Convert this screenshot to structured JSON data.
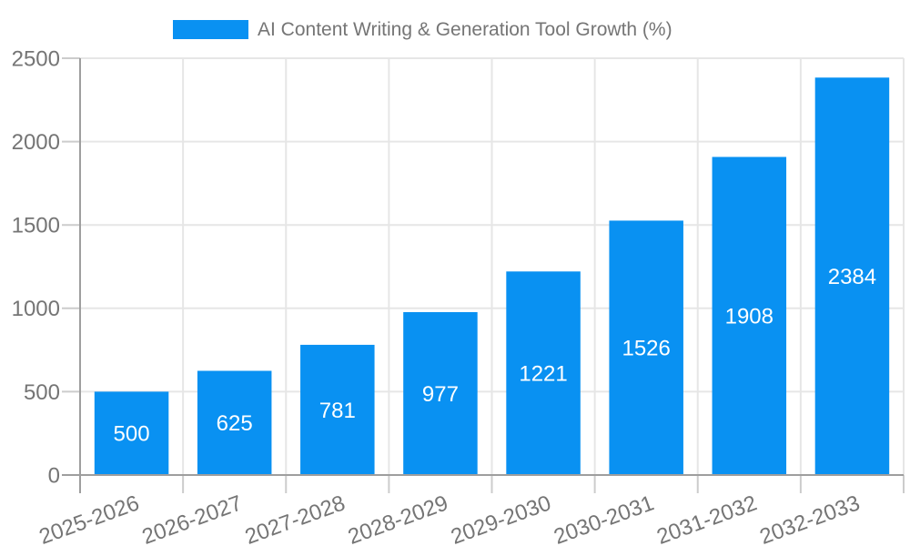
{
  "chart_data": {
    "type": "bar",
    "title": "AI Content Writing & Generation Tool Growth (%)",
    "categories": [
      "2025-2026",
      "2026-2027",
      "2027-2028",
      "2028-2029",
      "2029-2030",
      "2030-2031",
      "2031-2032",
      "2032-2033"
    ],
    "values": [
      500,
      625,
      781,
      977,
      1221,
      1526,
      1908,
      2384
    ],
    "xlabel": "",
    "ylabel": "",
    "ylim": [
      0,
      2500
    ],
    "yticks": [
      0,
      500,
      1000,
      1500,
      2000,
      2500
    ],
    "grid": true,
    "legend_position": "top-center",
    "value_labels_position": "inside-center",
    "x_label_rotation_deg": -20,
    "colors": {
      "bar": "#0991f2",
      "value_label": "#ffffff",
      "tick_label": "#757575",
      "legend_text": "#757575",
      "gridline": "#e6e6e6",
      "tick": "#cccccc",
      "axis": "#9e9e9e",
      "background": "#ffffff"
    }
  }
}
